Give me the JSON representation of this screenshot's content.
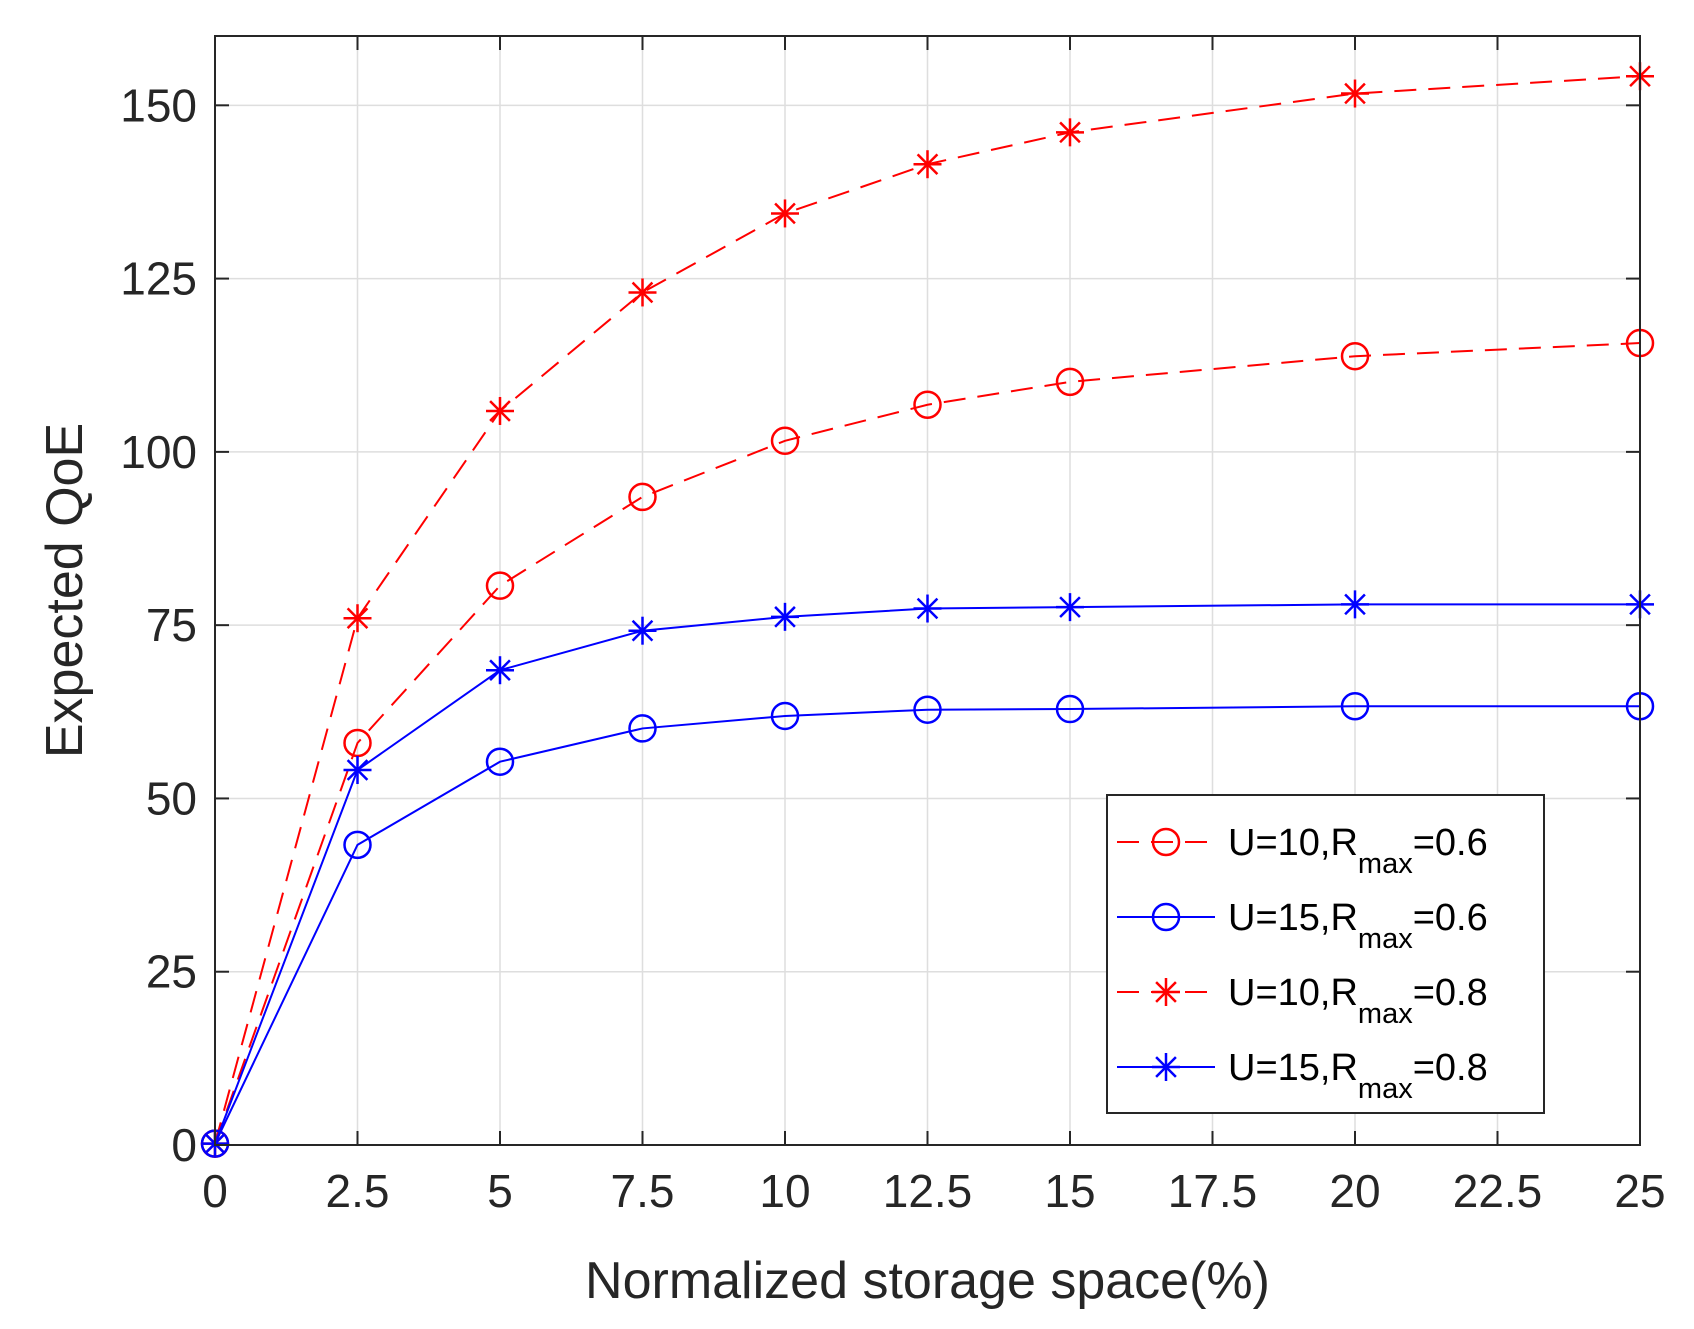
{
  "chart_data": {
    "type": "line",
    "title": "",
    "xlabel": "Normalized storage space(%)",
    "ylabel": "Expected QoE",
    "xlim": [
      0,
      25
    ],
    "ylim": [
      0,
      160
    ],
    "xticks": [
      0,
      2.5,
      5,
      7.5,
      10,
      12.5,
      15,
      17.5,
      20,
      22.5,
      25
    ],
    "xtick_labels": [
      "0",
      "2.5",
      "5",
      "7.5",
      "10",
      "12.5",
      "15",
      "17.5",
      "20",
      "22.5",
      "25"
    ],
    "yticks": [
      0,
      25,
      50,
      75,
      100,
      125,
      150
    ],
    "ytick_labels": [
      "0",
      "25",
      "50",
      "75",
      "100",
      "125",
      "150"
    ],
    "grid": true,
    "legend_position": "bottom-right",
    "x": [
      0,
      2.5,
      5,
      7.5,
      10,
      12.5,
      15,
      20,
      25
    ],
    "series": [
      {
        "name": "U=10,R_max=0.6",
        "legend_main": "U=10,R",
        "legend_sub": "max",
        "legend_suffix": "=0.6",
        "color": "#ff0000",
        "dash": "dashed",
        "marker": "circle",
        "values": [
          0.2,
          58,
          80.7,
          93.5,
          101.6,
          106.8,
          110.1,
          113.8,
          115.7
        ]
      },
      {
        "name": "U=15,R_max=0.6",
        "legend_main": "U=15,R",
        "legend_sub": "max",
        "legend_suffix": "=0.6",
        "color": "#0000ff",
        "dash": "solid",
        "marker": "circle",
        "values": [
          0.2,
          43.3,
          55.3,
          60.1,
          61.9,
          62.8,
          62.9,
          63.3,
          63.3
        ]
      },
      {
        "name": "U=10,R_max=0.8",
        "legend_main": "U=10,R",
        "legend_sub": "max",
        "legend_suffix": "=0.8",
        "color": "#ff0000",
        "dash": "dashed",
        "marker": "asterisk",
        "values": [
          0.2,
          76,
          105.9,
          123,
          134.4,
          141.5,
          146.1,
          151.7,
          154.2
        ]
      },
      {
        "name": "U=15,R_max=0.8",
        "legend_main": "U=15,R",
        "legend_sub": "max",
        "legend_suffix": "=0.8",
        "color": "#0000ff",
        "dash": "solid",
        "marker": "asterisk",
        "values": [
          0.2,
          54.1,
          68.5,
          74.2,
          76.2,
          77.4,
          77.6,
          78,
          78
        ]
      }
    ]
  }
}
